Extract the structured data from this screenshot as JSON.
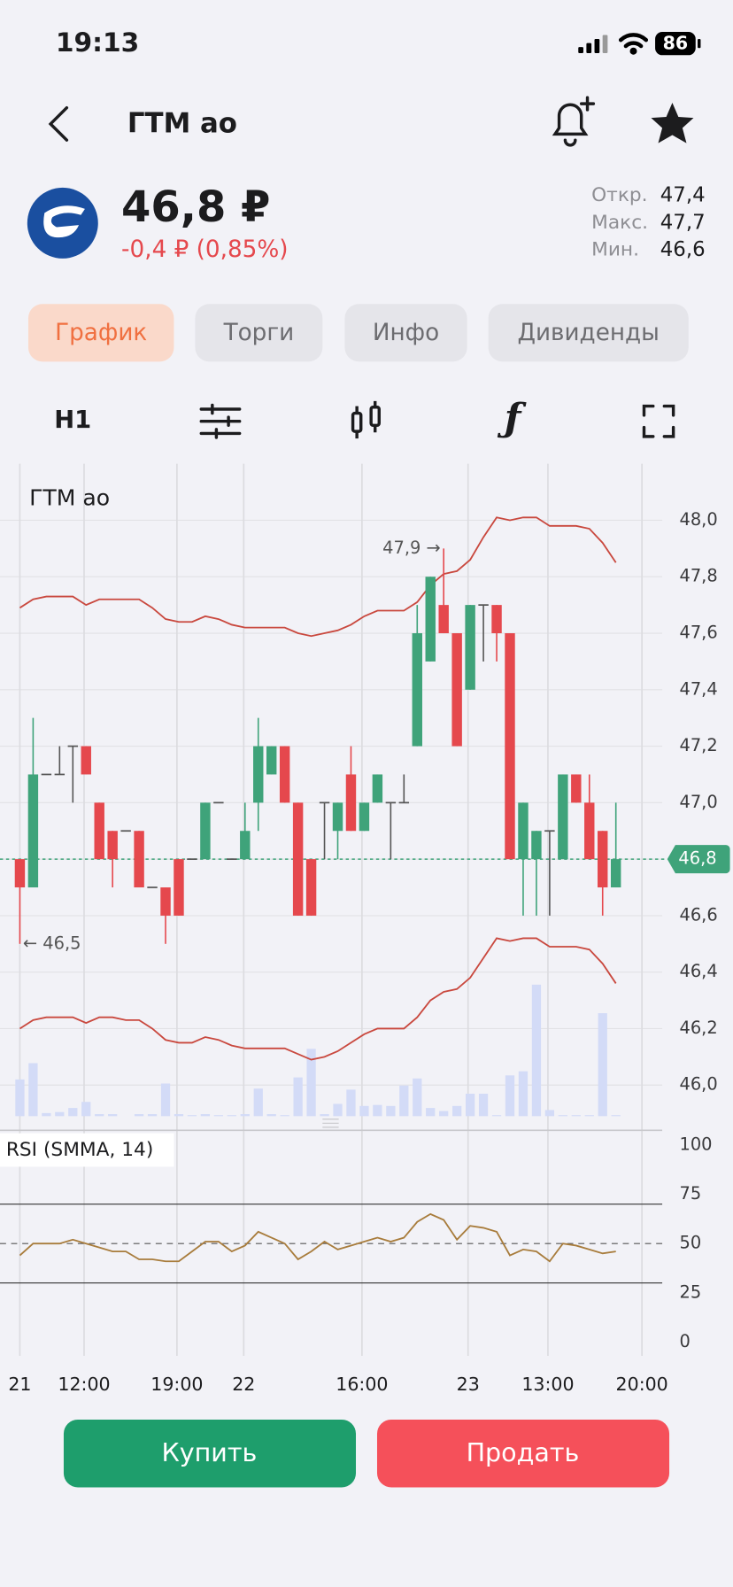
{
  "status_bar": {
    "time": "19:13",
    "battery": "86"
  },
  "header": {
    "title": "ГТМ ао"
  },
  "quote": {
    "price": "46,8 ₽",
    "change": "-0,4 ₽ (0,85%)",
    "stats": [
      {
        "label": "Откр.",
        "value": "47,4"
      },
      {
        "label": "Макс.",
        "value": "47,7"
      },
      {
        "label": "Мин.",
        "value": "46,6"
      }
    ]
  },
  "tabs": [
    {
      "label": "График",
      "active": true
    },
    {
      "label": "Торги",
      "active": false
    },
    {
      "label": "Инфо",
      "active": false
    },
    {
      "label": "Дивиденды",
      "active": false
    }
  ],
  "toolbar": {
    "interval": "H1"
  },
  "chart_data": [
    {
      "type": "candlestick",
      "title": "ГТМ ао",
      "open": [
        46.8,
        46.7,
        47.1,
        47.1,
        47.2,
        47.2,
        47.0,
        46.9,
        46.9,
        46.9,
        46.7,
        46.7,
        46.8,
        46.8,
        46.8,
        47.0,
        46.8,
        46.8,
        47.0,
        47.1,
        47.2,
        47.0,
        46.8,
        47.0,
        46.9,
        47.1,
        46.9,
        47.0,
        47.0,
        47.0,
        47.2,
        47.5,
        47.7,
        47.6,
        47.4,
        47.7,
        47.7,
        47.6,
        46.8,
        46.8,
        46.9,
        46.8,
        47.1,
        47.0,
        46.9,
        46.7
      ],
      "high": [
        46.8,
        47.3,
        47.1,
        47.2,
        47.2,
        47.2,
        47.0,
        46.9,
        46.9,
        46.9,
        46.7,
        46.7,
        46.8,
        46.8,
        47.0,
        47.0,
        46.8,
        47.0,
        47.3,
        47.2,
        47.2,
        47.0,
        46.8,
        47.0,
        47.0,
        47.2,
        47.0,
        47.1,
        47.0,
        47.1,
        47.7,
        47.8,
        47.9,
        47.6,
        47.7,
        47.7,
        47.7,
        47.6,
        47.0,
        46.9,
        46.9,
        47.1,
        47.1,
        47.1,
        46.9,
        47.0
      ],
      "low": [
        46.5,
        46.7,
        47.1,
        47.1,
        47.0,
        47.1,
        46.8,
        46.7,
        46.9,
        46.7,
        46.7,
        46.5,
        46.6,
        46.8,
        46.8,
        47.0,
        46.8,
        46.8,
        46.9,
        47.1,
        47.0,
        46.6,
        46.6,
        46.8,
        46.8,
        46.9,
        46.9,
        47.0,
        46.8,
        47.0,
        47.2,
        47.5,
        47.6,
        47.2,
        47.4,
        47.5,
        47.5,
        46.8,
        46.6,
        46.6,
        46.6,
        46.8,
        47.0,
        46.8,
        46.6,
        46.7
      ],
      "close": [
        46.7,
        47.1,
        47.1,
        47.1,
        47.2,
        47.1,
        46.8,
        46.8,
        46.9,
        46.7,
        46.7,
        46.6,
        46.6,
        46.8,
        47.0,
        47.0,
        46.8,
        46.9,
        47.2,
        47.2,
        47.0,
        46.6,
        46.6,
        47.0,
        47.0,
        46.9,
        47.0,
        47.1,
        47.0,
        47.0,
        47.6,
        47.8,
        47.6,
        47.2,
        47.7,
        47.7,
        47.6,
        46.8,
        47.0,
        46.9,
        46.9,
        47.1,
        47.0,
        46.8,
        46.7,
        46.8
      ],
      "volume": [
        36,
        52,
        3,
        4,
        8,
        14,
        2,
        2,
        0,
        2,
        2,
        32,
        2,
        1,
        2,
        1,
        1,
        2,
        27,
        2,
        1,
        38,
        66,
        2,
        12,
        26,
        10,
        11,
        10,
        30,
        37,
        8,
        5,
        10,
        22,
        22,
        1,
        40,
        44,
        129,
        6,
        1,
        1,
        1,
        101,
        1
      ],
      "series": [
        {
          "color": "#c9483e",
          "values": [
            47.69,
            47.72,
            47.73,
            47.73,
            47.73,
            47.7,
            47.72,
            47.72,
            47.72,
            47.72,
            47.69,
            47.65,
            47.64,
            47.64,
            47.66,
            47.65,
            47.63,
            47.62,
            47.62,
            47.62,
            47.62,
            47.6,
            47.59,
            47.6,
            47.61,
            47.63,
            47.66,
            47.68,
            47.68,
            47.68,
            47.71,
            47.77,
            47.81,
            47.82,
            47.86,
            47.94,
            48.01,
            48.0,
            48.01,
            48.01,
            47.98,
            47.98,
            47.98,
            47.97,
            47.92,
            47.85
          ]
        },
        {
          "color": "#c9483e",
          "values": [
            46.2,
            46.23,
            46.24,
            46.24,
            46.24,
            46.22,
            46.24,
            46.24,
            46.23,
            46.23,
            46.2,
            46.16,
            46.15,
            46.15,
            46.17,
            46.16,
            46.14,
            46.13,
            46.13,
            46.13,
            46.13,
            46.11,
            46.09,
            46.1,
            46.12,
            46.15,
            46.18,
            46.2,
            46.2,
            46.2,
            46.24,
            46.3,
            46.33,
            46.34,
            46.38,
            46.45,
            46.52,
            46.51,
            46.52,
            46.52,
            46.49,
            46.49,
            46.49,
            46.48,
            46.43,
            46.36
          ]
        }
      ],
      "up_color": "#3fa37a",
      "down_color": "#e5484d",
      "volume_color": "#d3dbf7",
      "last_price": {
        "value": 46.8,
        "label": "46,8"
      },
      "annotations": [
        {
          "value": 47.9,
          "label": "47,9 →"
        },
        {
          "value": 46.5,
          "label": "← 46,5"
        }
      ],
      "ylim": [
        45.89,
        48.2
      ],
      "yticks": [
        {
          "value": 48.0,
          "label": "48,0"
        },
        {
          "value": 47.8,
          "label": "47,8"
        },
        {
          "value": 47.6,
          "label": "47,6"
        },
        {
          "value": 47.4,
          "label": "47,4"
        },
        {
          "value": 47.2,
          "label": "47,2"
        },
        {
          "value": 47.0,
          "label": "47,0"
        },
        {
          "value": 46.8,
          "label": "46,8"
        },
        {
          "value": 46.6,
          "label": "46,6"
        },
        {
          "value": 46.4,
          "label": "46,4"
        },
        {
          "value": 46.2,
          "label": "46,2"
        },
        {
          "value": 46.0,
          "label": "46,0"
        }
      ],
      "xlim": [
        -1.5,
        48.5
      ],
      "xticks": [
        {
          "value": 0,
          "label": "21"
        },
        {
          "value": 4.85,
          "label": "12:00"
        },
        {
          "value": 11.86,
          "label": "19:00"
        },
        {
          "value": 16.9,
          "label": "22"
        },
        {
          "value": 25.83,
          "label": "16:00"
        },
        {
          "value": 33.84,
          "label": "23"
        },
        {
          "value": 39.87,
          "label": "13:00"
        },
        {
          "value": 46.97,
          "label": "20:00"
        }
      ],
      "grid": true
    },
    {
      "type": "line",
      "title": "RSI (SMMA, 14)",
      "color": "#a87c3c",
      "values": [
        44,
        50,
        50,
        50,
        52,
        50,
        48,
        46,
        46,
        42,
        42,
        41,
        41,
        46,
        51,
        51,
        46,
        49,
        56,
        53,
        50,
        42,
        46,
        51,
        47,
        49,
        51,
        53,
        51,
        53,
        61,
        65,
        62,
        52,
        59,
        58,
        56,
        44,
        47,
        46,
        41,
        50,
        49,
        47,
        45,
        46
      ],
      "levels": [
        70,
        50,
        30
      ],
      "ylim": [
        -7,
        107
      ],
      "yticks": [
        100,
        75,
        50,
        25,
        0
      ],
      "xlim": [
        -1.5,
        48.5
      ]
    }
  ],
  "buttons": {
    "buy": "Купить",
    "sell": "Продать"
  }
}
